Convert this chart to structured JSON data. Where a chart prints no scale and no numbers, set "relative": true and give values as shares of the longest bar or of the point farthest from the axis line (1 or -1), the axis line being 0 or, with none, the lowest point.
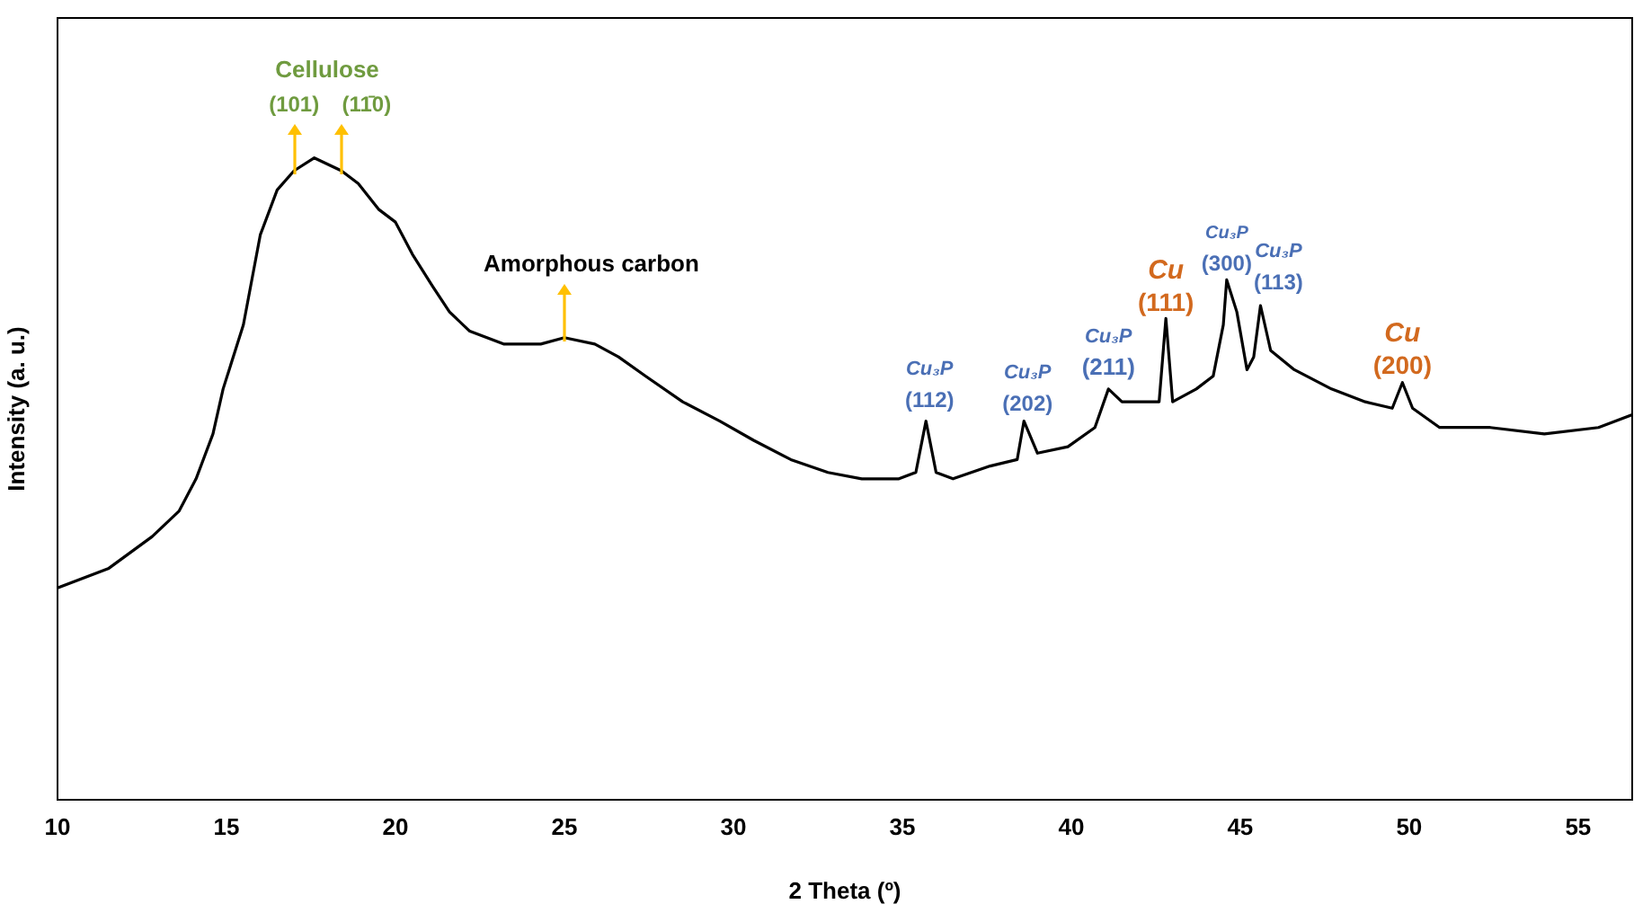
{
  "chart_data": {
    "type": "line",
    "relative": true,
    "xlabel": "2 Theta (º)",
    "ylabel": "Intensity (a. u.)",
    "xlim": [
      10,
      56.6
    ],
    "xticks": [
      10,
      15,
      20,
      25,
      30,
      35,
      40,
      45,
      50,
      55
    ],
    "grid": false,
    "legend": false,
    "marker": "none",
    "line_style": "solid",
    "x": [
      10,
      11.5,
      12.8,
      13.6,
      14.1,
      14.6,
      14.9,
      15.5,
      16.0,
      16.5,
      17.0,
      17.6,
      18.4,
      18.9,
      19.5,
      20.0,
      20.5,
      21.1,
      21.6,
      22.2,
      23.2,
      24.3,
      25.0,
      25.9,
      26.6,
      27.4,
      28.5,
      29.6,
      30.6,
      31.7,
      32.8,
      33.8,
      34.9,
      35.4,
      35.7,
      36.0,
      36.5,
      37.6,
      38.4,
      38.6,
      39.0,
      39.9,
      40.7,
      41.1,
      41.5,
      42.3,
      42.6,
      42.8,
      43.0,
      43.7,
      44.2,
      44.5,
      44.6,
      44.9,
      45.2,
      45.4,
      45.6,
      45.9,
      46.6,
      47.7,
      48.7,
      49.5,
      49.8,
      50.1,
      50.9,
      52.4,
      54.0,
      55.6,
      56.6
    ],
    "series": [
      {
        "color": "#000000",
        "values": [
          0.33,
          0.36,
          0.41,
          0.45,
          0.5,
          0.57,
          0.64,
          0.74,
          0.88,
          0.95,
          0.98,
          1.0,
          0.98,
          0.96,
          0.92,
          0.9,
          0.85,
          0.8,
          0.76,
          0.73,
          0.71,
          0.71,
          0.72,
          0.71,
          0.69,
          0.66,
          0.62,
          0.59,
          0.56,
          0.53,
          0.51,
          0.5,
          0.5,
          0.51,
          0.59,
          0.51,
          0.5,
          0.52,
          0.53,
          0.59,
          0.54,
          0.55,
          0.58,
          0.64,
          0.62,
          0.62,
          0.62,
          0.75,
          0.62,
          0.64,
          0.66,
          0.74,
          0.81,
          0.76,
          0.67,
          0.69,
          0.77,
          0.7,
          0.67,
          0.64,
          0.62,
          0.61,
          0.65,
          0.61,
          0.58,
          0.58,
          0.57,
          0.58,
          0.6
        ]
      }
    ],
    "annotations": [
      "Cellulose",
      {
        "text": "(101)",
        "x": 17.0,
        "y": 0.98
      },
      {
        "text": "(11̄0)",
        "x": 18.4,
        "y": 0.98
      },
      {
        "text": "Amorphous carbon",
        "x": 25.0,
        "y": 0.72
      },
      {
        "text": "Cu₃P\n(112)",
        "x": 35.7,
        "y": 0.59
      },
      {
        "text": "Cu₃P\n(202)",
        "x": 38.6,
        "y": 0.59
      },
      {
        "text": "Cu₃P\n(211)",
        "x": 41.1,
        "y": 0.64
      },
      {
        "text": "Cu\n(111)",
        "x": 42.8,
        "y": 0.75
      },
      {
        "text": "Cu₃P\n(300)",
        "x": 44.6,
        "y": 0.81
      },
      {
        "text": "Cu₃P\n(113)",
        "x": 45.6,
        "y": 0.77
      },
      {
        "text": "Cu\n(200)",
        "x": 49.8,
        "y": 0.65
      }
    ]
  }
}
